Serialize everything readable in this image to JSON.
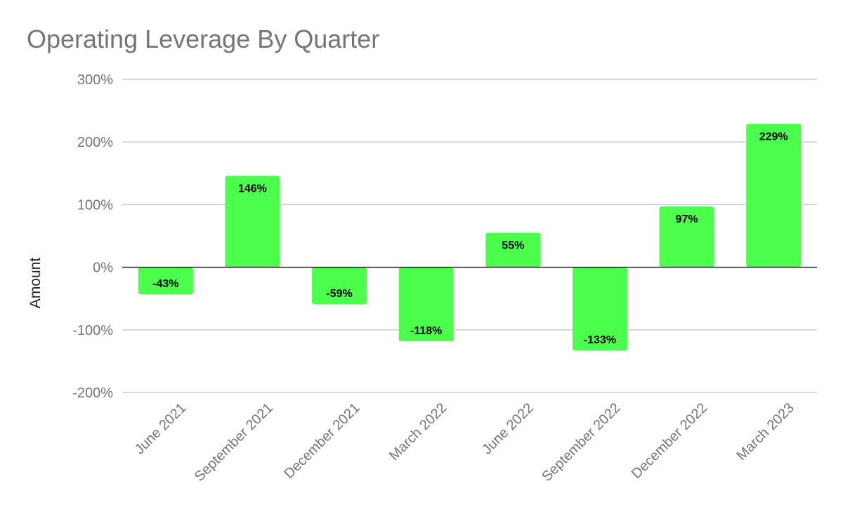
{
  "chart_data": {
    "type": "bar",
    "title": "Operating Leverage By Quarter",
    "xlabel": "",
    "ylabel": "Amount",
    "categories": [
      "June 2021",
      "September 2021",
      "December 2021",
      "March 2022",
      "June 2022",
      "September 2022",
      "December 2022",
      "March 2023"
    ],
    "values": [
      -43,
      146,
      -59,
      -118,
      55,
      -133,
      97,
      229
    ],
    "value_labels": [
      "-43%",
      "146%",
      "-59%",
      "-118%",
      "55%",
      "-133%",
      "97%",
      "229%"
    ],
    "ylim": [
      -200,
      300
    ],
    "yticks": [
      300,
      200,
      100,
      0,
      -100,
      -200
    ],
    "ytick_labels": [
      "300%",
      "200%",
      "100%",
      "0%",
      "-100%",
      "-200%"
    ],
    "bar_color": "#4cff4c",
    "grid": true,
    "legend": "none"
  }
}
